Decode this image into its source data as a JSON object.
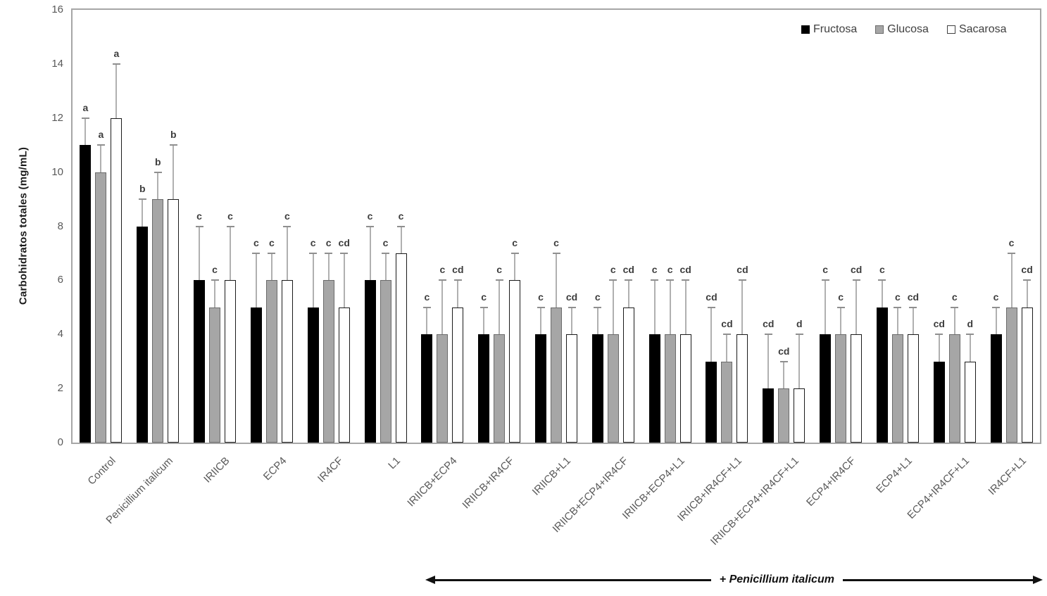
{
  "chart_data": {
    "type": "bar",
    "title": "",
    "xlabel": "",
    "ylabel": "Carbohidratos totales (mg/mL)",
    "ylim": [
      0,
      16
    ],
    "yticks": [
      0,
      2,
      4,
      6,
      8,
      10,
      12,
      14,
      16
    ],
    "grid": false,
    "legend_position": "top-right",
    "error_bars": "upper-only",
    "categories": [
      "Control",
      "Penicillium italicum",
      "IRIICB",
      "ECP4",
      "IR4CF",
      "L1",
      "IRIICB+ECP4",
      "IRIICB+IR4CF",
      "IRIICB+L1",
      "IRIICB+ECP4+IR4CF",
      "IRIICB+ECP4+L1",
      "IRIICB+IR4CF+L1",
      "IRIICB+ECP4+IR4CF+L1",
      "ECP4+IR4CF",
      "ECP4+L1",
      "ECP4+IR4CF+L1",
      "IR4CF+L1"
    ],
    "series": [
      {
        "name": "Fructosa",
        "color": "#000000",
        "values": [
          11,
          8,
          6,
          5,
          5,
          6,
          4,
          4,
          4,
          4,
          4,
          3,
          2,
          4,
          5,
          3,
          4
        ],
        "error_top": [
          12,
          9,
          8,
          7,
          7,
          8,
          5,
          5,
          5,
          5,
          6,
          5,
          4,
          6,
          6,
          4,
          5
        ],
        "sig_letters": [
          "a",
          "b",
          "c",
          "c",
          "c",
          "c",
          "c",
          "c",
          "c",
          "c",
          "c",
          "cd",
          "cd",
          "c",
          "c",
          "cd",
          "c"
        ]
      },
      {
        "name": "Glucosa",
        "color": "#a6a6a6",
        "values": [
          10,
          9,
          5,
          6,
          6,
          6,
          4,
          4,
          5,
          4,
          4,
          3,
          2,
          4,
          4,
          4,
          5
        ],
        "error_top": [
          11,
          10,
          6,
          7,
          7,
          7,
          6,
          6,
          7,
          6,
          6,
          4,
          3,
          5,
          5,
          5,
          7
        ],
        "sig_letters": [
          "a",
          "b",
          "c",
          "c",
          "c",
          "c",
          "c",
          "c",
          "c",
          "c",
          "c",
          "cd",
          "cd",
          "c",
          "c",
          "c",
          "c"
        ]
      },
      {
        "name": "Sacarosa",
        "color": "#ffffff",
        "values": [
          12,
          9,
          6,
          6,
          5,
          7,
          5,
          6,
          4,
          5,
          4,
          4,
          2,
          4,
          4,
          3,
          5
        ],
        "error_top": [
          14,
          11,
          8,
          8,
          7,
          8,
          6,
          7,
          5,
          6,
          6,
          6,
          4,
          6,
          5,
          4,
          6
        ],
        "sig_letters": [
          "a",
          "b",
          "c",
          "c",
          "cd",
          "c",
          "cd",
          "c",
          "cd",
          "cd",
          "cd",
          "cd",
          "d",
          "cd",
          "cd",
          "d",
          "cd"
        ]
      }
    ],
    "annotation": {
      "text": "+ Penicillium italicum",
      "style": "double-headed-arrow",
      "span_category_indexes": [
        6,
        16
      ]
    }
  }
}
